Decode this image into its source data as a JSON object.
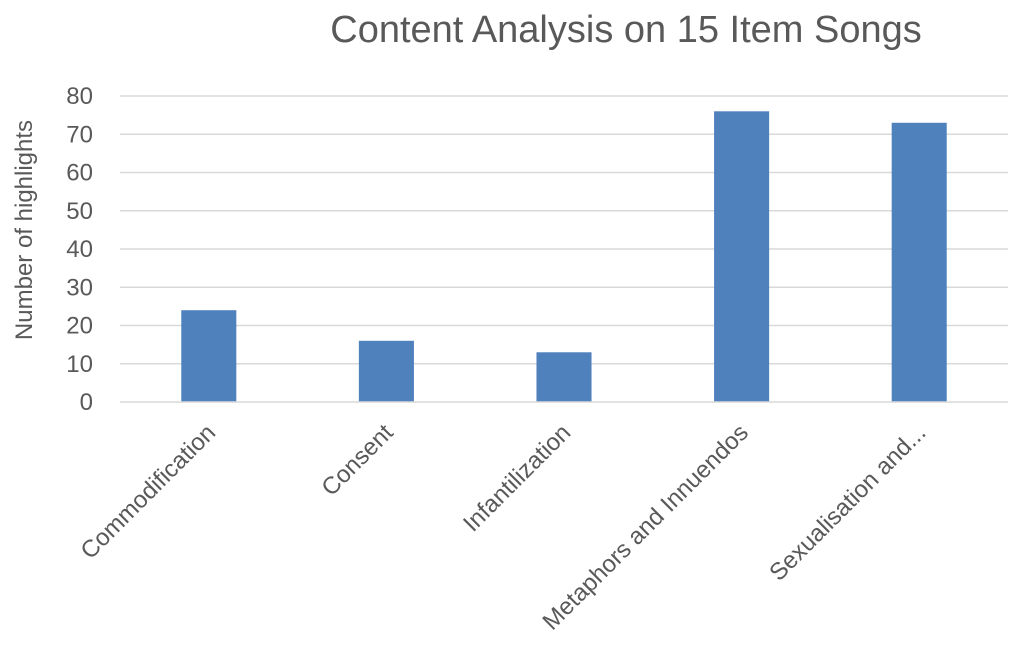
{
  "chart_data": {
    "type": "bar",
    "title": "Content Analysis on 15 Item Songs",
    "xlabel": "",
    "ylabel": "Number of highlights",
    "categories": [
      "Commodification",
      "Consent",
      "Infantilization",
      "Metaphors and Innuendos",
      "Sexualisation and..."
    ],
    "values": [
      24,
      16,
      13,
      76,
      73
    ],
    "ylim": [
      0,
      80
    ],
    "yticks": [
      0,
      10,
      20,
      30,
      40,
      50,
      60,
      70,
      80
    ],
    "grid": true,
    "legend": "none",
    "bar_color": "#4f81bd"
  }
}
